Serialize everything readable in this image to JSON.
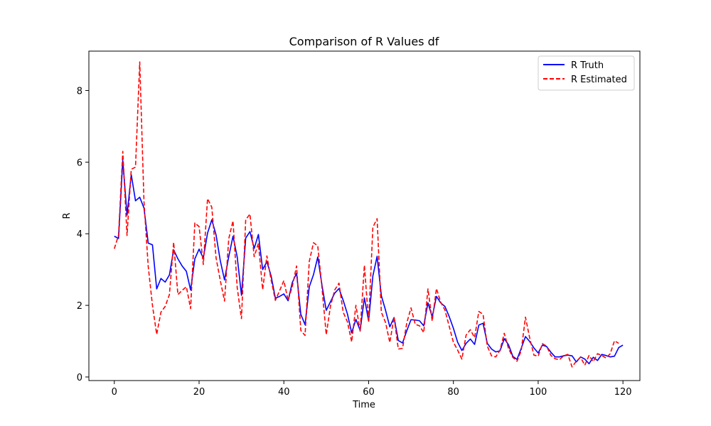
{
  "chart_data": {
    "type": "line",
    "title": "Comparison of R Values df",
    "xlabel": "Time",
    "ylabel": "R",
    "xlim": [
      -6,
      124
    ],
    "ylim": [
      -0.1,
      9.1
    ],
    "xticks": [
      0,
      20,
      40,
      60,
      80,
      100,
      120
    ],
    "yticks": [
      0,
      2,
      4,
      6,
      8
    ],
    "grid": false,
    "legend_position": "top-right",
    "x_start": 0,
    "series": [
      {
        "name": "R Truth",
        "color": "#0000ff",
        "style": "solid",
        "values": [
          3.93,
          3.87,
          6.05,
          4.52,
          5.65,
          4.92,
          5.02,
          4.72,
          3.74,
          3.69,
          2.46,
          2.75,
          2.65,
          2.85,
          3.55,
          3.3,
          3.1,
          2.95,
          2.43,
          3.3,
          3.57,
          3.32,
          4.02,
          4.39,
          3.97,
          3.25,
          2.71,
          3.36,
          3.93,
          3.35,
          2.28,
          3.88,
          4.06,
          3.59,
          3.98,
          3.0,
          3.22,
          2.82,
          2.2,
          2.25,
          2.32,
          2.13,
          2.64,
          2.9,
          1.75,
          1.46,
          2.52,
          2.86,
          3.35,
          2.56,
          1.86,
          2.1,
          2.34,
          2.47,
          2.14,
          1.76,
          1.23,
          1.61,
          1.3,
          2.21,
          1.56,
          2.82,
          3.37,
          2.27,
          1.86,
          1.4,
          1.66,
          1.02,
          0.95,
          1.29,
          1.6,
          1.59,
          1.57,
          1.43,
          2.07,
          1.68,
          2.25,
          2.07,
          1.97,
          1.69,
          1.36,
          0.97,
          0.74,
          0.94,
          1.06,
          0.91,
          1.45,
          1.5,
          0.94,
          0.78,
          0.7,
          0.73,
          1.07,
          0.9,
          0.58,
          0.49,
          0.8,
          1.13,
          0.99,
          0.81,
          0.67,
          0.89,
          0.85,
          0.69,
          0.56,
          0.56,
          0.59,
          0.61,
          0.59,
          0.42,
          0.56,
          0.5,
          0.37,
          0.55,
          0.46,
          0.63,
          0.6,
          0.56,
          0.58,
          0.82,
          0.89
        ]
      },
      {
        "name": "R Estimated",
        "color": "#ff0000",
        "style": "dashed",
        "values": [
          3.58,
          3.96,
          6.3,
          3.95,
          5.8,
          5.86,
          8.8,
          4.9,
          3.09,
          2.0,
          1.19,
          1.81,
          1.97,
          2.3,
          3.76,
          2.3,
          2.42,
          2.52,
          1.91,
          4.3,
          4.2,
          3.14,
          4.98,
          4.74,
          3.33,
          2.7,
          2.12,
          3.86,
          4.36,
          2.49,
          1.63,
          4.39,
          4.55,
          3.36,
          3.73,
          2.44,
          3.38,
          2.71,
          2.14,
          2.41,
          2.69,
          2.14,
          2.53,
          3.1,
          1.3,
          1.16,
          3.23,
          3.75,
          3.66,
          2.49,
          1.18,
          1.98,
          2.43,
          2.62,
          1.81,
          1.54,
          0.98,
          2.0,
          1.28,
          3.12,
          1.53,
          4.18,
          4.42,
          1.81,
          1.52,
          0.96,
          1.68,
          0.78,
          0.8,
          1.51,
          1.93,
          1.47,
          1.43,
          1.24,
          2.46,
          1.56,
          2.47,
          2.09,
          1.87,
          1.42,
          0.97,
          0.75,
          0.5,
          1.17,
          1.32,
          1.1,
          1.83,
          1.75,
          0.86,
          0.59,
          0.56,
          0.75,
          1.22,
          0.8,
          0.55,
          0.44,
          0.73,
          1.67,
          1.09,
          0.61,
          0.58,
          0.93,
          0.86,
          0.6,
          0.51,
          0.48,
          0.59,
          0.63,
          0.28,
          0.44,
          0.55,
          0.33,
          0.6,
          0.43,
          0.65,
          0.6,
          0.53,
          0.65,
          1.01,
          0.94
        ]
      }
    ]
  }
}
